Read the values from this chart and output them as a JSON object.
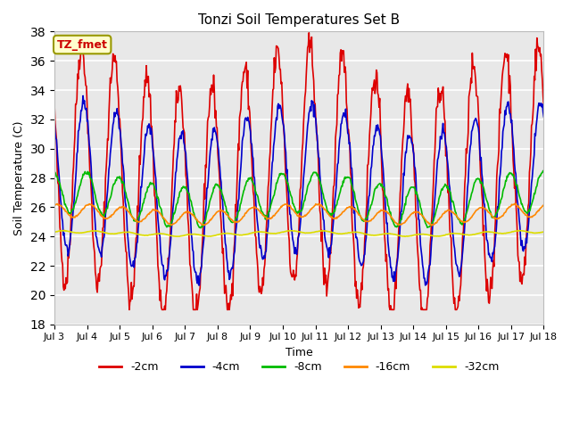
{
  "title": "Tonzi Soil Temperatures Set B",
  "xlabel": "Time",
  "ylabel": "Soil Temperature (C)",
  "ylim": [
    18,
    38
  ],
  "yticks": [
    18,
    20,
    22,
    24,
    26,
    28,
    30,
    32,
    34,
    36,
    38
  ],
  "x_labels": [
    "Jul 3",
    "Jul 4",
    "Jul 5",
    "Jul 6",
    "Jul 7",
    "Jul 8",
    "Jul 9",
    "Jul 10",
    "Jul 11",
    "Jul 12",
    "Jul 13",
    "Jul 14",
    "Jul 15",
    "Jul 16",
    "Jul 17",
    "Jul 18"
  ],
  "annotation_text": "TZ_fmet",
  "annotation_color": "#cc0000",
  "annotation_box_facecolor": "#ffffcc",
  "annotation_box_edgecolor": "#999900",
  "series": {
    "2cm": {
      "color": "#dd0000",
      "label": "-2cm",
      "linewidth": 1.2
    },
    "4cm": {
      "color": "#0000cc",
      "label": "-4cm",
      "linewidth": 1.2
    },
    "8cm": {
      "color": "#00bb00",
      "label": "-8cm",
      "linewidth": 1.2
    },
    "16cm": {
      "color": "#ff8800",
      "label": "-16cm",
      "linewidth": 1.2
    },
    "32cm": {
      "color": "#dddd00",
      "label": "-32cm",
      "linewidth": 1.2
    }
  },
  "bg_color": "#e8e8e8",
  "grid_color": "#ffffff",
  "days": 15,
  "pts_per_day": 48
}
